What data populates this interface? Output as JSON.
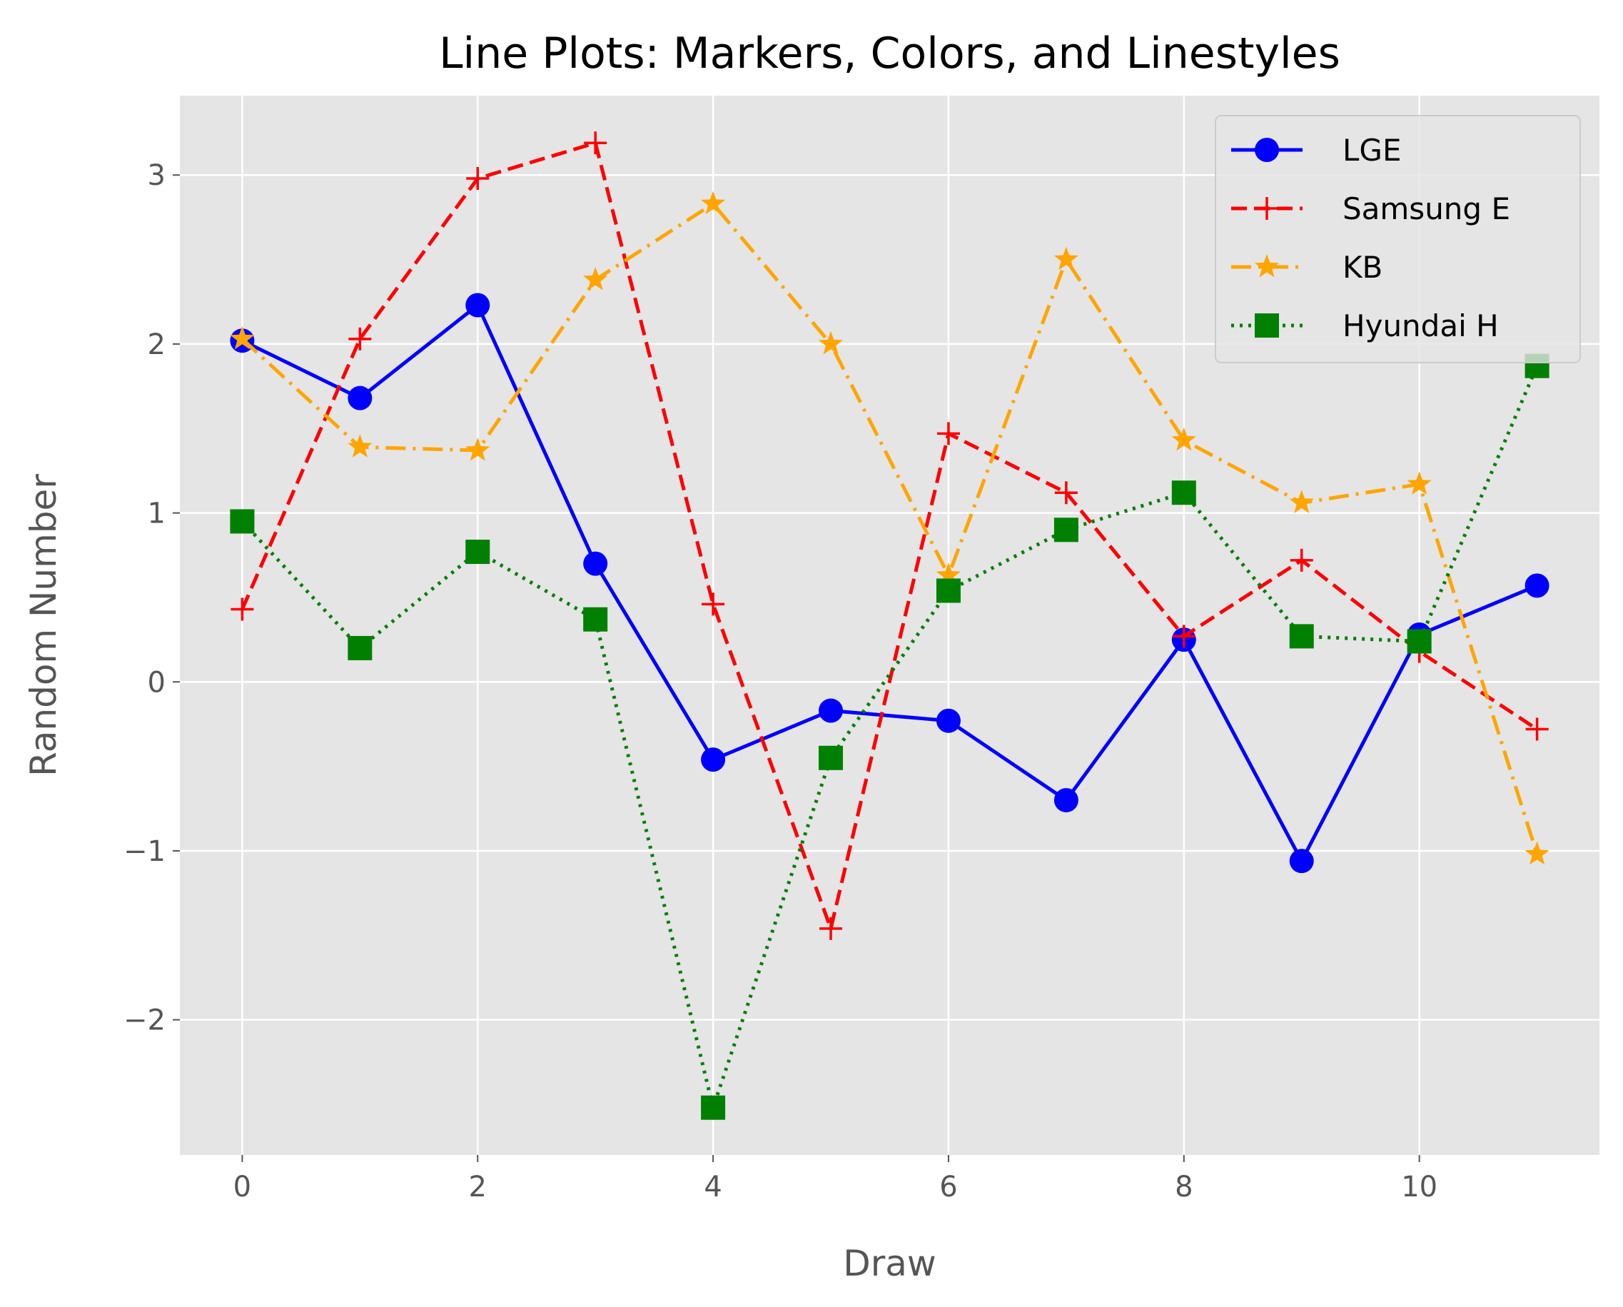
{
  "chart_data": {
    "type": "line",
    "title": "Line Plots: Markers, Colors, and Linestyles",
    "xlabel": "Draw",
    "ylabel": "Random Number",
    "xlim": [
      -0.53,
      11.53
    ],
    "ylim": [
      -2.8,
      3.47
    ],
    "xticks": [
      0,
      2,
      4,
      6,
      8,
      10
    ],
    "xtick_labels": [
      "0",
      "2",
      "4",
      "6",
      "8",
      "10"
    ],
    "yticks": [
      -2,
      -1,
      0,
      1,
      2,
      3
    ],
    "ytick_labels": [
      "−2",
      "−1",
      "0",
      "1",
      "2",
      "3"
    ],
    "grid": true,
    "background": "#e5e5e5",
    "legend_position": "top-right",
    "x": [
      0,
      1,
      2,
      3,
      4,
      5,
      6,
      7,
      8,
      9,
      10,
      11
    ],
    "series": [
      {
        "name": "LGE",
        "color": "#0000ff",
        "linestyle": "solid",
        "marker": "circle",
        "values": [
          2.02,
          1.68,
          2.23,
          0.7,
          -0.46,
          -0.17,
          -0.23,
          -0.7,
          0.25,
          -1.06,
          0.28,
          0.57
        ]
      },
      {
        "name": "Samsung E",
        "color": "#ff0000",
        "linestyle": "dashed",
        "marker": "plus",
        "values": [
          0.43,
          2.03,
          2.98,
          3.19,
          0.46,
          -1.46,
          1.47,
          1.12,
          0.27,
          0.72,
          0.18,
          -0.28
        ]
      },
      {
        "name": "KB",
        "color": "#ffa500",
        "linestyle": "dashdot",
        "marker": "star",
        "values": [
          2.03,
          1.39,
          1.37,
          2.38,
          2.83,
          2.0,
          0.63,
          2.5,
          1.43,
          1.06,
          1.17,
          -1.02
        ]
      },
      {
        "name": "Hyundai H",
        "color": "#008000",
        "linestyle": "dotted",
        "marker": "square",
        "values": [
          0.95,
          0.2,
          0.77,
          0.37,
          -2.52,
          -0.45,
          0.54,
          0.9,
          1.12,
          0.27,
          0.24,
          1.87
        ]
      }
    ]
  }
}
